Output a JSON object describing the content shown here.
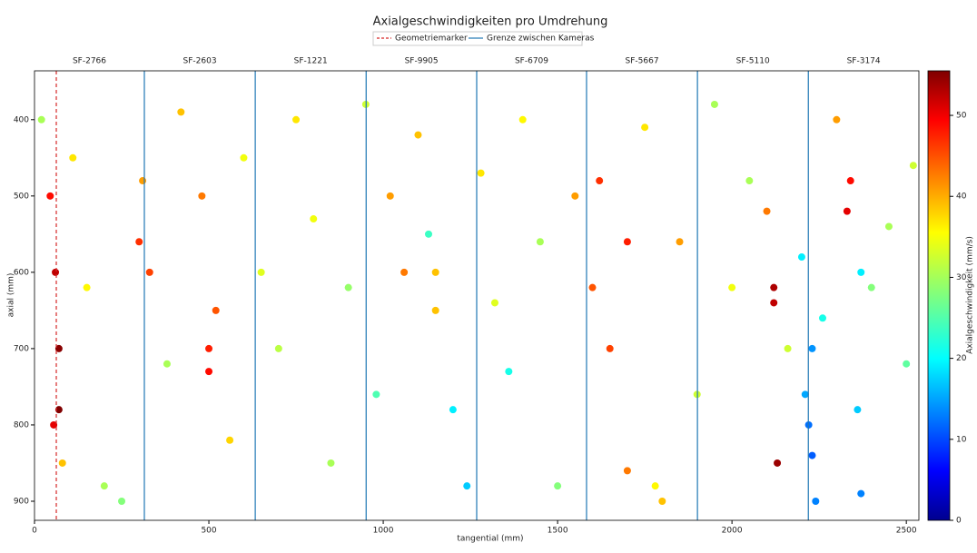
{
  "chart_data": {
    "type": "scatter",
    "title": "Axialgeschwindigkeiten pro Umdrehung",
    "xlabel": "tangential (mm)",
    "ylabel": "axial (mm)",
    "xlim": [
      0,
      2536
    ],
    "ylim": [
      925,
      336
    ],
    "xticks": [
      0,
      500,
      1000,
      1500,
      2000,
      2500
    ],
    "yticks": [
      400,
      500,
      600,
      700,
      800,
      900
    ],
    "camera_labels": [
      "SF-2766",
      "SF-2603",
      "SF-1221",
      "SF-9905",
      "SF-6709",
      "SF-5667",
      "SF-5110",
      "SF-3174"
    ],
    "geometry_marker": {
      "name": "Geometriemarker",
      "x": 62.5,
      "color": "#d62728"
    },
    "camera_boundaries": {
      "name": "Grenze zwischen Kameras",
      "x": [
        315,
        633,
        951,
        1268,
        1583,
        1901,
        2219
      ],
      "color": "#1f77b4"
    },
    "colorbar": {
      "label": "Axialgeschwindigkeit (mm/s)",
      "lim": [
        0,
        55.5
      ],
      "ticks": [
        0,
        10,
        20,
        30,
        40,
        50
      ],
      "colormap": "jet"
    },
    "series": [
      {
        "x": [
          20,
          45,
          60,
          70,
          55,
          80,
          110,
          150,
          200,
          250,
          300,
          310,
          330,
          380,
          420,
          480,
          500,
          520,
          560,
          600,
          650,
          700,
          750,
          800,
          850,
          900,
          950,
          980,
          1020,
          1060,
          1100,
          1130,
          1150,
          1200,
          1240,
          1280,
          1320,
          1360,
          1400,
          1450,
          1500,
          1550,
          1600,
          1650,
          1700,
          1750,
          1800,
          1850,
          1900,
          1950,
          2000,
          2050,
          2100,
          2120,
          2130,
          2160,
          2200,
          2210,
          2230,
          2240,
          2260,
          2300,
          2330,
          2340,
          2360,
          2370,
          2400,
          2450,
          2500,
          2520,
          1620,
          1700,
          1780,
          2230,
          2220,
          2370,
          2120,
          70,
          500,
          1150
        ],
        "y": [
          400,
          500,
          600,
          700,
          800,
          850,
          450,
          620,
          880,
          900,
          560,
          480,
          600,
          720,
          390,
          500,
          730,
          650,
          820,
          450,
          600,
          700,
          400,
          530,
          850,
          620,
          380,
          760,
          500,
          600,
          420,
          550,
          600,
          780,
          880,
          470,
          640,
          730,
          400,
          560,
          880,
          500,
          620,
          700,
          860,
          410,
          900,
          560,
          760,
          380,
          620,
          480,
          520,
          640,
          850,
          700,
          580,
          760,
          840,
          900,
          660,
          400,
          520,
          480,
          780,
          890,
          620,
          540,
          720,
          460,
          480,
          560,
          880,
          700,
          800,
          600,
          620,
          780,
          700,
          650
        ],
        "values": [
          30,
          48,
          52,
          55,
          50,
          38,
          36,
          35,
          30,
          28,
          46,
          40,
          45,
          30,
          38,
          42,
          48,
          44,
          37,
          34,
          33,
          31,
          36,
          34,
          30,
          29,
          32,
          25,
          40,
          42,
          38,
          24,
          38,
          20,
          18,
          36,
          33,
          22,
          35,
          30,
          28,
          40,
          44,
          45,
          42,
          36,
          38,
          40,
          32,
          30,
          34,
          30,
          42,
          52,
          54,
          32,
          20,
          16,
          12,
          14,
          22,
          40,
          50,
          48,
          18,
          14,
          28,
          30,
          26,
          32,
          46,
          47,
          35,
          15,
          13,
          20,
          53,
          56,
          47,
          38
        ]
      }
    ]
  }
}
